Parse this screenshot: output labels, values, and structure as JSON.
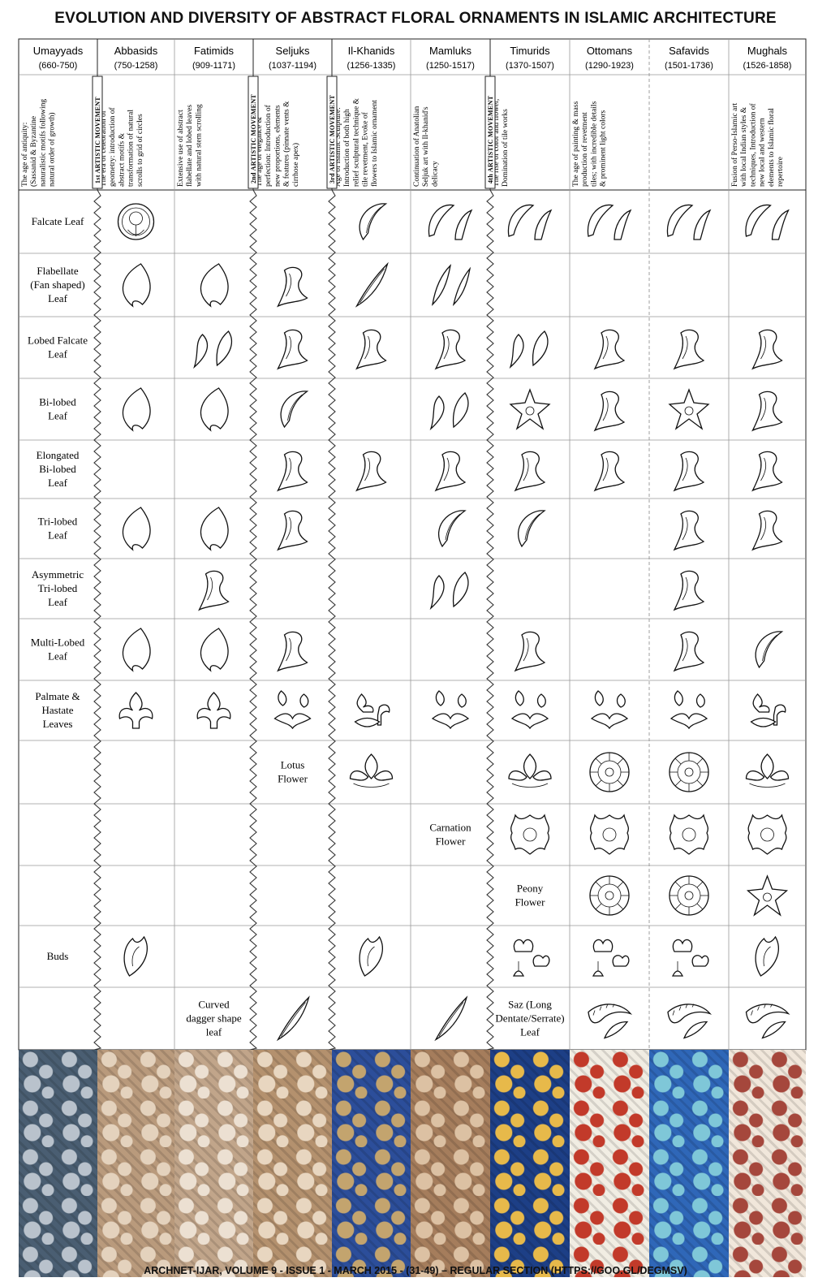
{
  "title": "EVOLUTION AND DIVERSITY OF  ABSTRACT FLORAL ORNAMENTS IN ISLAMIC ARCHITECTURE",
  "footer": "ARCHNET-IJAR, VOLUME 9 - ISSUE 1 - MARCH 2015 - (31-49) – REGULAR SECTION (HTTPS://GOO.GL/DEGMSV)",
  "dynasties": [
    {
      "name": "Umayyads",
      "range": "(660-750)",
      "desc": [
        "The    age    of    antiquity:",
        "(Sassanid    &    Byzantine",
        "naturalistic motifs following",
        "natural order of growth)"
      ]
    },
    {
      "name": "Abbasids",
      "range": "(750-1258)",
      "desc": [
        "The era of celebration of",
        "geometry: introduction of",
        "abstract   motifs   &",
        "transformation of natural",
        "scrolls to grid of circles"
      ]
    },
    {
      "name": "Fatimids",
      "range": "(909-1171)",
      "desc": [
        "Extensive use of abstract",
        "flabellate and lobed leaves",
        "with natural stem scrolling"
      ]
    },
    {
      "name": "Seljuks",
      "range": "(1037-1194)",
      "desc": [
        "The age of elegance &",
        "perfection: Introduction of",
        "new proportions, elements",
        "& features (pinnate vents &",
        "cirrhose apex)"
      ]
    },
    {
      "name": "Il-Khanids",
      "range": "(1256-1335)",
      "desc": [
        "Age of Islamic Sculpture:",
        "Introduction of both high",
        "relief sculptural technique &",
        "tile revetment, Evoke of",
        "flowers to Islamic ornament"
      ]
    },
    {
      "name": "Mamluks",
      "range": "(1250-1517)",
      "desc": [
        "Continuation of Anatolian",
        "Seljuk art with Il-khanid's",
        "delicacy"
      ]
    },
    {
      "name": "Timurids",
      "range": "(1370-1507)",
      "desc": [
        "The rise of color and flower,",
        "Domination of tile works"
      ]
    },
    {
      "name": "Ottomans",
      "range": "(1290-1923)",
      "desc": [
        "The age of painting & mass",
        "production of revetment",
        "tiles; with incredible details",
        "& prominent light colors"
      ]
    },
    {
      "name": "Safavids",
      "range": "(1501-1736)",
      "desc": []
    },
    {
      "name": "Mughals",
      "range": "(1526-1858)",
      "desc": [
        "Fusion of Perso-Islamic art",
        "with local Indian styles &",
        "techniques, Introduction of",
        "new   local   and   western",
        "elements to Islamic floral",
        "repertoire"
      ]
    }
  ],
  "movements": [
    "1st ARTISTIC MOVEMENT",
    "2nd ARTISTIC MOVEMENT",
    "3rd ARTISTIC MOVEMENT",
    "4th ARTISTIC MOVEMENT"
  ],
  "row_labels": [
    [
      "Falcate Leaf"
    ],
    [
      "Flabellate",
      "(Fan shaped)",
      "Leaf"
    ],
    [
      "Lobed Falcate",
      "Leaf"
    ],
    [
      "Bi-lobed",
      "Leaf"
    ],
    [
      "Elongated",
      "Bi-lobed",
      "Leaf"
    ],
    [
      "Tri-lobed",
      "Leaf"
    ],
    [
      "Asymmetric",
      "Tri-lobed",
      "Leaf"
    ],
    [
      "Multi-Lobed",
      "Leaf"
    ],
    [
      "Palmate &",
      "Hastate",
      "Leaves"
    ],
    [],
    [],
    [],
    [
      "Buds"
    ],
    []
  ],
  "inline_labels": [
    {
      "row": 9,
      "col": 3,
      "lines": [
        "Lotus",
        "Flower"
      ]
    },
    {
      "row": 10,
      "col": 5,
      "lines": [
        "Carnation",
        "Flower"
      ]
    },
    {
      "row": 11,
      "col": 6,
      "lines": [
        "Peony",
        "Flower"
      ]
    },
    {
      "row": 13,
      "col": 2,
      "lines": [
        "Curved",
        "dagger shape",
        "leaf"
      ]
    },
    {
      "row": 13,
      "col": 6,
      "lines": [
        "Saz (Long",
        "Dentate/Serrate)",
        "Leaf"
      ]
    }
  ],
  "ornaments": [
    [
      [
        1,
        "circle"
      ],
      [
        4,
        "falcate"
      ],
      [
        5,
        "falcate2"
      ],
      [
        6,
        "falcate2"
      ],
      [
        7,
        "falcate2"
      ],
      [
        8,
        "falcate2"
      ],
      [
        9,
        "falcate2"
      ]
    ],
    [
      [
        1,
        "flabellate"
      ],
      [
        2,
        "flabellate"
      ],
      [
        3,
        "curl"
      ],
      [
        4,
        "blade"
      ],
      [
        5,
        "blade2"
      ]
    ],
    [
      [
        2,
        "curl2"
      ],
      [
        3,
        "curl"
      ],
      [
        4,
        "curl"
      ],
      [
        5,
        "curl"
      ],
      [
        6,
        "curl2"
      ],
      [
        7,
        "curl"
      ],
      [
        8,
        "curl"
      ],
      [
        9,
        "curl"
      ]
    ],
    [
      [
        1,
        "flabellate"
      ],
      [
        2,
        "flabellate"
      ],
      [
        3,
        "falcate"
      ],
      [
        5,
        "curl2"
      ],
      [
        6,
        "star"
      ],
      [
        7,
        "curl"
      ],
      [
        8,
        "star"
      ],
      [
        9,
        "curl"
      ]
    ],
    [
      [
        3,
        "curl"
      ],
      [
        4,
        "curl"
      ],
      [
        5,
        "curl"
      ],
      [
        6,
        "curl"
      ],
      [
        7,
        "curl"
      ],
      [
        8,
        "curl"
      ],
      [
        9,
        "curl"
      ]
    ],
    [
      [
        1,
        "flabellate"
      ],
      [
        2,
        "flabellate"
      ],
      [
        3,
        "curl"
      ],
      [
        5,
        "falcate"
      ],
      [
        6,
        "falcate"
      ],
      [
        8,
        "curl"
      ],
      [
        9,
        "curl"
      ]
    ],
    [
      [
        2,
        "curl"
      ],
      [
        5,
        "curl2"
      ],
      [
        8,
        "curl"
      ]
    ],
    [
      [
        1,
        "flabellate"
      ],
      [
        2,
        "flabellate"
      ],
      [
        3,
        "curl"
      ],
      [
        6,
        "curl"
      ],
      [
        8,
        "curl"
      ],
      [
        9,
        "falcate"
      ]
    ],
    [
      [
        1,
        "palmate"
      ],
      [
        2,
        "palmate"
      ],
      [
        3,
        "palm3"
      ],
      [
        4,
        "palm2"
      ],
      [
        5,
        "palm3"
      ],
      [
        6,
        "palm3"
      ],
      [
        7,
        "palm3"
      ],
      [
        8,
        "palm3"
      ],
      [
        9,
        "palm2"
      ]
    ],
    [
      [
        4,
        "lotus"
      ],
      [
        6,
        "lotus"
      ],
      [
        7,
        "rosette"
      ],
      [
        8,
        "rosette"
      ],
      [
        9,
        "lotus"
      ]
    ],
    [
      [
        6,
        "carnation"
      ],
      [
        7,
        "carnation"
      ],
      [
        8,
        "carnation"
      ],
      [
        9,
        "carnation"
      ]
    ],
    [
      [
        7,
        "rosette"
      ],
      [
        8,
        "rosette"
      ],
      [
        9,
        "star"
      ]
    ],
    [
      [
        1,
        "bud"
      ],
      [
        4,
        "bud"
      ],
      [
        6,
        "bud3"
      ],
      [
        7,
        "bud3"
      ],
      [
        8,
        "bud3"
      ],
      [
        9,
        "bud"
      ]
    ],
    [
      [
        3,
        "blade"
      ],
      [
        5,
        "blade"
      ],
      [
        7,
        "saz"
      ],
      [
        8,
        "saz"
      ],
      [
        9,
        "saz"
      ]
    ]
  ],
  "photos": [
    {
      "name": "umayyad-scroll-panel",
      "base": "#4a5e72",
      "accent": "#b9c2cc"
    },
    {
      "name": "abbasid-stucco-panel",
      "base": "#b99a7c",
      "accent": "#e4d2bd"
    },
    {
      "name": "fatimid-carved-panel",
      "base": "#c1a58a",
      "accent": "#ece0d2"
    },
    {
      "name": "seljuk-carved-panel",
      "base": "#b4916e",
      "accent": "#e8d6c0"
    },
    {
      "name": "ilkhanid-tile-panel",
      "base": "#2c4e9a",
      "accent": "#c3a46e"
    },
    {
      "name": "mamluk-carved-panel",
      "base": "#a57d5c",
      "accent": "#dcc1a3"
    },
    {
      "name": "timurid-tile-panel",
      "base": "#1d3f86",
      "accent": "#e7b94a"
    },
    {
      "name": "ottoman-tile-panel",
      "base": "#f1ede3",
      "accent": "#c23a2a"
    },
    {
      "name": "safavid-tile-panel",
      "base": "#2f67b8",
      "accent": "#7fc7d8"
    },
    {
      "name": "mughal-inlay-panel",
      "base": "#f1e7db",
      "accent": "#a5473c"
    }
  ]
}
